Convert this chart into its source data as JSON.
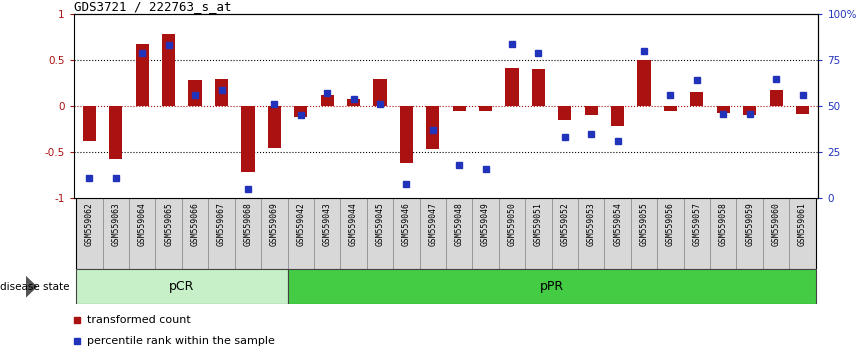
{
  "title": "GDS3721 / 222763_s_at",
  "samples": [
    "GSM559062",
    "GSM559063",
    "GSM559064",
    "GSM559065",
    "GSM559066",
    "GSM559067",
    "GSM559068",
    "GSM559069",
    "GSM559042",
    "GSM559043",
    "GSM559044",
    "GSM559045",
    "GSM559046",
    "GSM559047",
    "GSM559048",
    "GSM559049",
    "GSM559050",
    "GSM559051",
    "GSM559052",
    "GSM559053",
    "GSM559054",
    "GSM559055",
    "GSM559056",
    "GSM559057",
    "GSM559058",
    "GSM559059",
    "GSM559060",
    "GSM559061"
  ],
  "transformed_count": [
    -0.38,
    -0.57,
    0.68,
    0.78,
    0.28,
    0.3,
    -0.72,
    -0.45,
    -0.12,
    0.12,
    0.08,
    0.3,
    -0.62,
    -0.47,
    -0.05,
    -0.05,
    0.42,
    0.4,
    -0.15,
    -0.1,
    -0.22,
    0.5,
    -0.05,
    0.15,
    -0.07,
    -0.1,
    0.18,
    -0.08
  ],
  "percentile_rank": [
    11,
    11,
    79,
    83,
    56,
    59,
    5,
    51,
    45,
    57,
    54,
    51,
    8,
    37,
    18,
    16,
    84,
    79,
    33,
    35,
    31,
    80,
    56,
    64,
    46,
    46,
    65,
    56
  ],
  "pcr_count": 8,
  "ppr_count": 20,
  "bar_color": "#AA1111",
  "dot_color": "#2233BB",
  "pcr_light": "#C8F0C8",
  "pcr_dark": "#55DD55",
  "ppr_color": "#44CC44",
  "ylim_left": [
    -1,
    1
  ],
  "ylim_right": [
    0,
    100
  ],
  "yticks_left": [
    -1,
    -0.5,
    0,
    0.5,
    1
  ],
  "yticks_right": [
    0,
    25,
    50,
    75,
    100
  ],
  "ytick_labels_left": [
    "-1",
    "-0.5",
    "0",
    "0.5",
    "1"
  ],
  "ytick_labels_right": [
    "0",
    "25",
    "50",
    "75",
    "100%"
  ],
  "label_box_color1": "#D8D8D8",
  "label_box_color2": "#C0C0C0",
  "label_box_border": "#888888"
}
